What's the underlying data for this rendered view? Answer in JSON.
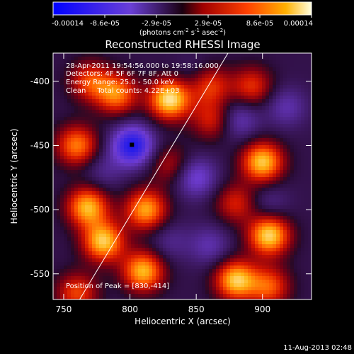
{
  "chart_data": {
    "type": "heatmap",
    "title": "Reconstructed RHESSI Image",
    "xlabel": "Heliocentric X (arcsec)",
    "ylabel": "Heliocentric Y (arcsec)",
    "xlim": [
      742,
      937
    ],
    "ylim": [
      -570,
      -378
    ],
    "xticks": [
      750,
      800,
      850,
      900
    ],
    "yticks": [
      -400,
      -450,
      -500,
      -550
    ],
    "colorbar": {
      "ticks": [
        "-0.00014",
        "-8.6e-05",
        "-2.9e-05",
        "2.9e-05",
        "8.6e-05",
        "0.00014"
      ],
      "unit_line1": "(photons cm",
      "unit_sup1": "-2",
      "unit_mid1": " s",
      "unit_sup2": "-1",
      "unit_mid2": " asec",
      "unit_sup3": "-2",
      "unit_end": ")"
    },
    "annotations": [
      "28-Apr-2011 19:54:56.000 to 19:58:16.000",
      "Detectors: 4F 5F 6F 7F 8F, Att 0",
      "Energy Range: 25.0 - 50.0 keV",
      "Clean     Total counts: 4.22E+03"
    ],
    "peak_label": "Position of Peak = [830,-414]",
    "peak": [
      830,
      -414
    ],
    "hot_spots": [
      {
        "x": 770,
        "y": -400,
        "v": 0.55
      },
      {
        "x": 790,
        "y": -410,
        "v": 0.7
      },
      {
        "x": 830,
        "y": -414,
        "v": 1.0
      },
      {
        "x": 860,
        "y": -403,
        "v": 0.55
      },
      {
        "x": 892,
        "y": -404,
        "v": 0.5
      },
      {
        "x": 760,
        "y": -450,
        "v": 0.7
      },
      {
        "x": 768,
        "y": -498,
        "v": 0.85
      },
      {
        "x": 812,
        "y": -500,
        "v": 0.8
      },
      {
        "x": 780,
        "y": -525,
        "v": 0.9
      },
      {
        "x": 810,
        "y": -548,
        "v": 0.85
      },
      {
        "x": 760,
        "y": -565,
        "v": 0.55
      },
      {
        "x": 900,
        "y": -463,
        "v": 0.9
      },
      {
        "x": 905,
        "y": -520,
        "v": 0.95
      },
      {
        "x": 880,
        "y": -555,
        "v": 0.9
      },
      {
        "x": 905,
        "y": -560,
        "v": 0.6
      },
      {
        "x": 862,
        "y": -430,
        "v": 0.45
      },
      {
        "x": 880,
        "y": -495,
        "v": 0.45
      },
      {
        "x": 830,
        "y": -465,
        "v": 0.35
      }
    ],
    "cold_spots": [
      {
        "x": 802,
        "y": -450,
        "v": -0.85
      },
      {
        "x": 850,
        "y": -475,
        "v": -0.45
      },
      {
        "x": 882,
        "y": -430,
        "v": -0.35
      },
      {
        "x": 860,
        "y": -528,
        "v": -0.3
      },
      {
        "x": 918,
        "y": -420,
        "v": -0.3
      },
      {
        "x": 850,
        "y": -395,
        "v": -0.15
      },
      {
        "x": 905,
        "y": -495,
        "v": -0.2
      },
      {
        "x": 780,
        "y": -470,
        "v": -0.2
      },
      {
        "x": 830,
        "y": -525,
        "v": -0.2
      }
    ],
    "limb": [
      [
        762,
        -570
      ],
      [
        874,
        -378
      ]
    ]
  },
  "footer": {
    "date": "11-Aug-2013 02:48"
  }
}
